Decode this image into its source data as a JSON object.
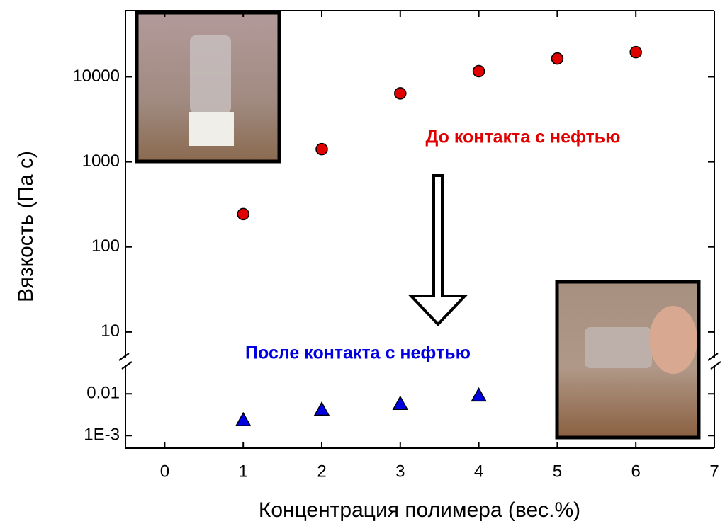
{
  "chart_data": {
    "type": "scatter",
    "xlabel": "Концентрация полимера (вес.%)",
    "ylabel": "Вязкость (Па с)",
    "xlim": [
      -0.5,
      7
    ],
    "xticks": [
      0,
      1,
      2,
      3,
      4,
      5,
      6,
      7
    ],
    "ylim": [
      5,
      60000
    ],
    "yticks": [
      10,
      100,
      1000,
      10000
    ],
    "y2lim": [
      0.0005,
      0.05
    ],
    "y2ticks": [
      {
        "value": 0.001,
        "label": "1E-3"
      },
      0.01
    ],
    "log_y": true,
    "series": [
      {
        "name": "До контакта с нефтью",
        "color": "#e00000",
        "marker": "circle",
        "x": [
          1,
          2,
          3,
          4,
          5,
          6
        ],
        "values": [
          243,
          1410,
          6380,
          11650,
          16400,
          19500
        ]
      },
      {
        "name": "После контакта с нефтью",
        "color": "#0000e0",
        "marker": "triangle",
        "axis": "y2",
        "x": [
          1,
          2,
          3,
          4
        ],
        "values": [
          0.00236,
          0.0042,
          0.0058,
          0.0092
        ]
      }
    ]
  }
}
